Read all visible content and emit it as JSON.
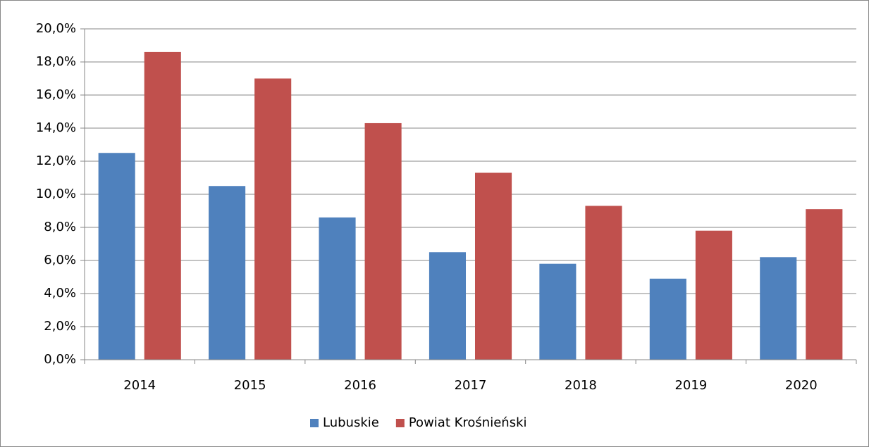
{
  "chart_data": {
    "type": "bar",
    "categories": [
      "2014",
      "2015",
      "2016",
      "2017",
      "2018",
      "2019",
      "2020"
    ],
    "series": [
      {
        "name": "Lubuskie",
        "color": "#4f81bd",
        "values": [
          12.5,
          10.5,
          8.6,
          6.5,
          5.8,
          4.9,
          6.2
        ]
      },
      {
        "name": "Powiat Krośnieński",
        "color": "#c0504d",
        "values": [
          18.6,
          17.0,
          14.3,
          11.3,
          9.3,
          7.8,
          9.1
        ]
      }
    ],
    "ylim": [
      0,
      20
    ],
    "yticks": [
      {
        "value": 0,
        "label": "0,0%"
      },
      {
        "value": 2,
        "label": "2,0%"
      },
      {
        "value": 4,
        "label": "4,0%"
      },
      {
        "value": 6,
        "label": "6,0%"
      },
      {
        "value": 8,
        "label": "8,0%"
      },
      {
        "value": 10,
        "label": "10,0%"
      },
      {
        "value": 12,
        "label": "12,0%"
      },
      {
        "value": 14,
        "label": "14,0%"
      },
      {
        "value": 16,
        "label": "16,0%"
      },
      {
        "value": 18,
        "label": "18,0%"
      },
      {
        "value": 20,
        "label": "20,0%"
      }
    ],
    "grid": true,
    "legend": "bottom"
  }
}
